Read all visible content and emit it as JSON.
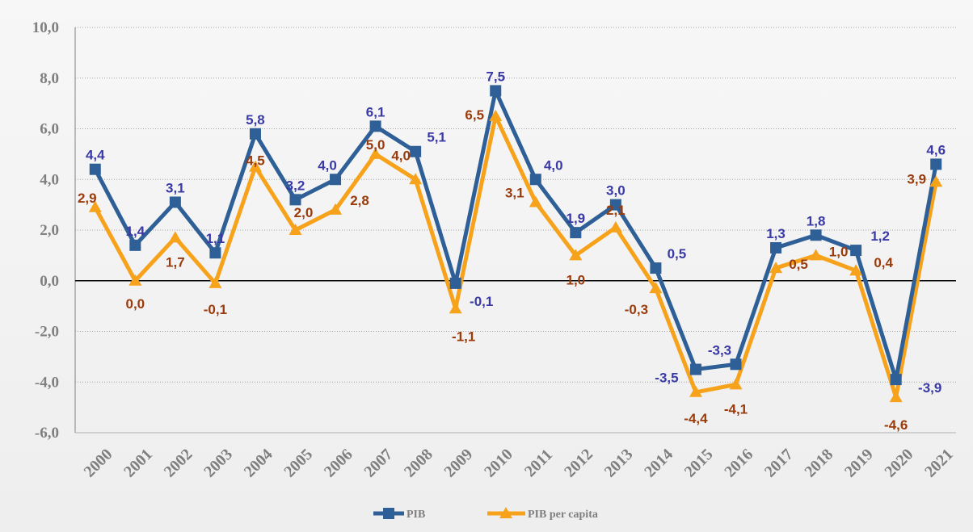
{
  "chart_data": {
    "type": "line",
    "title": "",
    "xlabel": "",
    "ylabel": "",
    "x": [
      "2000",
      "2001",
      "2002",
      "2003",
      "2004",
      "2005",
      "2006",
      "2007",
      "2008",
      "2009",
      "2010",
      "2011",
      "2012",
      "2013",
      "2014",
      "2015",
      "2016",
      "2017",
      "2018",
      "2019",
      "2020",
      "2021"
    ],
    "ylim": [
      -6,
      10
    ],
    "yticks": [
      "10,0",
      "8,0",
      "6,0",
      "4,0",
      "2,0",
      "0,0",
      "-2,0",
      "-4,0",
      "-6,0"
    ],
    "grid": true,
    "legend_position": "bottom",
    "series": [
      {
        "name": "PIB",
        "color": "#2e5f96",
        "label_color": "#3a3aa6",
        "marker": "square",
        "values": [
          4.4,
          1.4,
          3.1,
          1.1,
          5.8,
          3.2,
          4.0,
          6.1,
          5.1,
          -0.1,
          7.5,
          4.0,
          1.9,
          3.0,
          0.5,
          -3.5,
          -3.3,
          1.3,
          1.8,
          1.2,
          -3.9,
          4.6
        ],
        "labels": [
          "4,4",
          "1,4",
          "3,1",
          "1,1",
          "5,8",
          "3,2",
          "4,0",
          "6,1",
          "5,1",
          "-0,1",
          "7,5",
          "4,0",
          "1,9",
          "3,0",
          "0,5",
          "-3,5",
          "-3,3",
          "1,3",
          "1,8",
          "1,2",
          "-3,9",
          "4,6"
        ]
      },
      {
        "name": "PIB per capita",
        "color": "#f7a21b",
        "label_color": "#9a3b0c",
        "marker": "triangle",
        "values": [
          2.9,
          0.0,
          1.7,
          -0.1,
          4.5,
          2.0,
          2.8,
          5.0,
          4.0,
          -1.1,
          6.5,
          3.1,
          1.0,
          2.1,
          -0.3,
          -4.4,
          -4.1,
          0.5,
          1.0,
          0.4,
          -4.6,
          3.9
        ],
        "labels": [
          "2,9",
          "0,0",
          "1,7",
          "-0,1",
          "4,5",
          "2,0",
          "2,8",
          "5,0",
          "4,0",
          "-1,1",
          "6,5",
          "3,1",
          "1,0",
          "2,1",
          "-0,3",
          "-4,4",
          "-4,1",
          "0,5",
          "1,0",
          "0,4",
          "-4,6",
          "3,9"
        ]
      }
    ]
  }
}
